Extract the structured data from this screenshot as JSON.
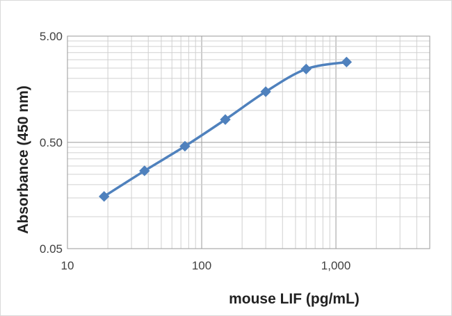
{
  "chart_data": {
    "type": "line",
    "title": "",
    "xlabel": "mouse LIF (pg/mL)",
    "ylabel": "Absorbance (450 nm)",
    "x_scale": "log",
    "y_scale": "log",
    "xlim": [
      10,
      5000
    ],
    "ylim": [
      0.05,
      5
    ],
    "x_ticks": [
      {
        "value": 10,
        "label": "10"
      },
      {
        "value": 100,
        "label": "100"
      },
      {
        "value": 1000,
        "label": "1,000"
      }
    ],
    "y_ticks": [
      {
        "value": 0.05,
        "label": "0.05"
      },
      {
        "value": 0.5,
        "label": "0.50"
      },
      {
        "value": 5,
        "label": "5.00"
      }
    ],
    "grid": true,
    "legend": "none",
    "series": [
      {
        "color": "#4f81bd",
        "marker": "diamond",
        "smooth": true,
        "x": [
          18.75,
          37.5,
          75,
          150,
          300,
          600,
          1200
        ],
        "y": [
          0.155,
          0.27,
          0.46,
          0.82,
          1.5,
          2.45,
          2.85
        ]
      }
    ]
  }
}
